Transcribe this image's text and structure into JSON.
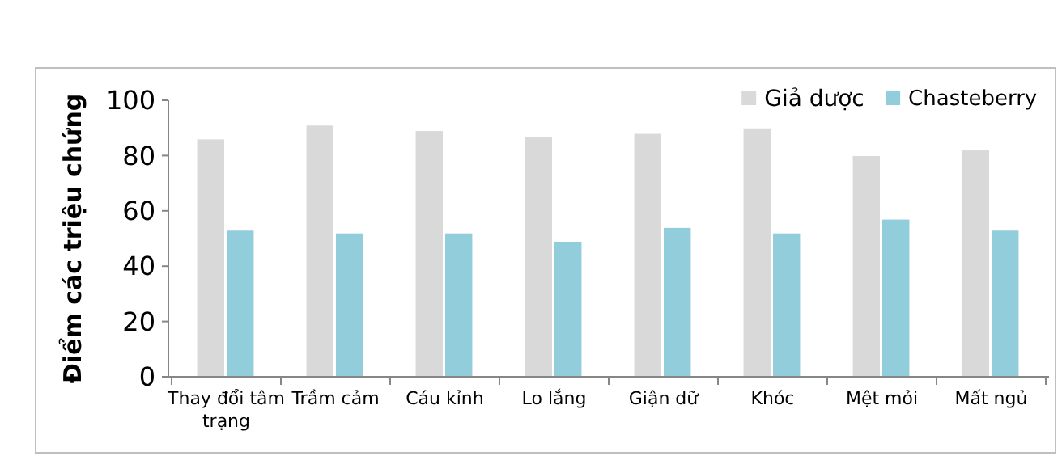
{
  "chart_data": {
    "type": "bar",
    "ylabel": "Điểm các triệu chứng",
    "categories": [
      "Thay đổi tâm trạng",
      "Trầm cảm",
      "Cáu kỉnh",
      "Lo lắng",
      "Giận dữ",
      "Khóc",
      "Mệt mỏi",
      "Mất ngủ"
    ],
    "series": [
      {
        "name": "Giả dược",
        "color": "#d9d9d9",
        "values": [
          86,
          91,
          89,
          87,
          88,
          90,
          80,
          82
        ]
      },
      {
        "name": "Chasteberry",
        "color": "#92cddc",
        "values": [
          53,
          52,
          52,
          49,
          54,
          52,
          57,
          53
        ]
      }
    ],
    "ylim": [
      0,
      100
    ],
    "yticks": [
      0,
      20,
      40,
      60,
      80,
      100
    ],
    "grid": false,
    "legend": "top right"
  }
}
